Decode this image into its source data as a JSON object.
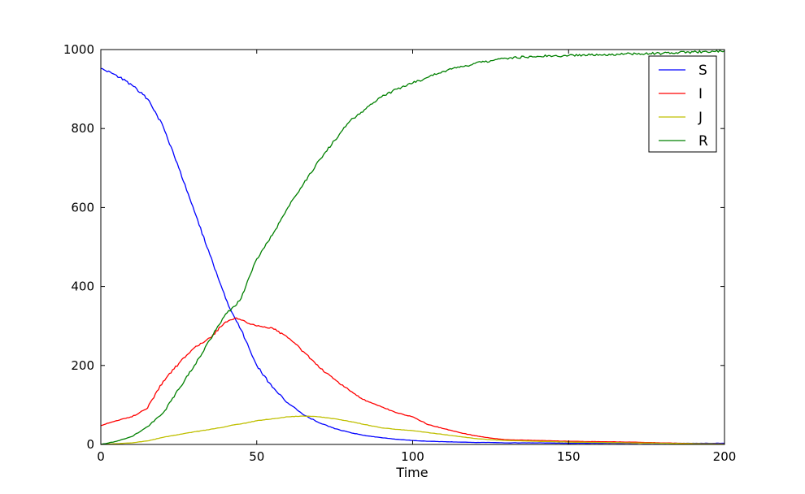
{
  "chart_data": {
    "type": "line",
    "title": "",
    "xlabel": "Time",
    "ylabel": "",
    "xlim": [
      0,
      200
    ],
    "ylim": [
      0,
      1000
    ],
    "xticks": [
      0,
      50,
      100,
      150,
      200
    ],
    "yticks": [
      0,
      200,
      400,
      600,
      800,
      1000
    ],
    "grid": false,
    "legend_position": "top-right",
    "x": [
      0,
      5,
      10,
      15,
      20,
      25,
      30,
      35,
      40,
      43,
      45,
      50,
      55,
      60,
      65,
      70,
      75,
      80,
      85,
      90,
      95,
      100,
      105,
      110,
      115,
      120,
      125,
      130,
      140,
      150,
      160,
      170,
      180,
      190,
      200
    ],
    "series": [
      {
        "name": "S",
        "color": "#0000ff",
        "values": [
          952,
          935,
          910,
          875,
          805,
          700,
          590,
          480,
          370,
          320,
          290,
          200,
          145,
          105,
          75,
          55,
          40,
          30,
          22,
          17,
          13,
          10,
          8,
          7,
          6,
          5,
          5,
          4,
          4,
          3,
          3,
          3,
          3,
          3,
          3
        ]
      },
      {
        "name": "I",
        "color": "#ff0000",
        "values": [
          48,
          60,
          70,
          92,
          160,
          205,
          245,
          270,
          310,
          320,
          315,
          300,
          295,
          270,
          235,
          195,
          165,
          135,
          110,
          95,
          80,
          70,
          50,
          40,
          30,
          22,
          16,
          12,
          10,
          8,
          7,
          6,
          4,
          2,
          1
        ]
      },
      {
        "name": "J",
        "color": "#bfbf00",
        "values": [
          0,
          2,
          4,
          9,
          18,
          25,
          32,
          38,
          45,
          50,
          52,
          60,
          65,
          70,
          72,
          70,
          65,
          58,
          50,
          42,
          38,
          35,
          30,
          25,
          20,
          15,
          12,
          10,
          8,
          6,
          5,
          4,
          3,
          2,
          1
        ]
      },
      {
        "name": "R",
        "color": "#008000",
        "values": [
          0,
          8,
          20,
          45,
          80,
          140,
          200,
          265,
          330,
          350,
          370,
          470,
          530,
          600,
          660,
          720,
          770,
          820,
          850,
          880,
          900,
          915,
          930,
          945,
          955,
          965,
          972,
          978,
          983,
          985,
          987,
          989,
          990,
          994,
          997
        ]
      }
    ]
  }
}
